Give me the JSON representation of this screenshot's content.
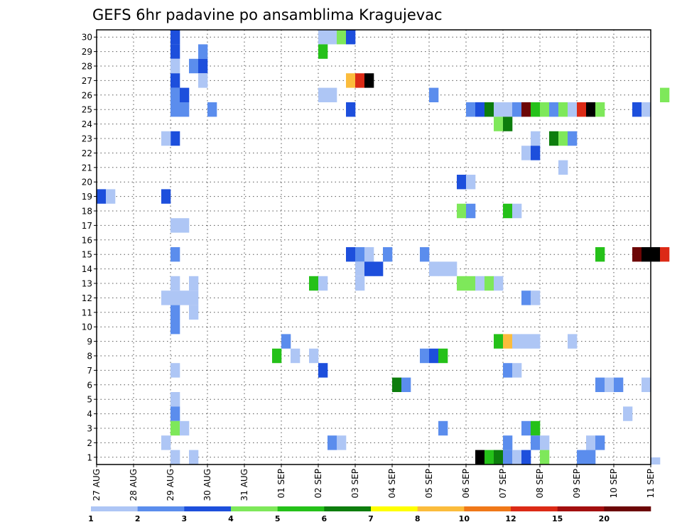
{
  "chart_data": {
    "type": "heatmap",
    "title": "GEFS 6hr padavine po ansamblima Kragujevac",
    "xlabel": "",
    "ylabel": "",
    "x_tick_labels": [
      "27 AUG",
      "28 AUG",
      "29 AUG",
      "30 AUG",
      "31 AUG",
      "01 SEP",
      "02 SEP",
      "03 SEP",
      "04 SEP",
      "05 SEP",
      "06 SEP",
      "07 SEP",
      "08 SEP",
      "09 SEP",
      "10 SEP",
      "11 SEP"
    ],
    "y_tick_labels": [
      "1",
      "2",
      "3",
      "4",
      "5",
      "6",
      "7",
      "8",
      "9",
      "10",
      "11",
      "12",
      "13",
      "14",
      "15",
      "16",
      "17",
      "18",
      "19",
      "20",
      "21",
      "22",
      "23",
      "24",
      "25",
      "26",
      "27",
      "28",
      "29",
      "30"
    ],
    "ylim": [
      1,
      30
    ],
    "time_steps_per_day": 4,
    "grid": true,
    "colorbar": {
      "boundaries": [
        "1",
        "2",
        "3",
        "4",
        "5",
        "6",
        "7",
        "8",
        "10",
        "12",
        "15",
        "20"
      ],
      "colors": [
        "#aec6f5",
        "#5b8ded",
        "#1d4fdc",
        "#7ee85a",
        "#25c119",
        "#0d7d0d",
        "#ffff00",
        "#fbbc3c",
        "#f07818",
        "#dc2a16",
        "#a30f0f",
        "#6c0606"
      ]
    },
    "cells": [
      [
        "29 AUG 00Z",
        30,
        3
      ],
      [
        "29 AUG 00Z",
        29,
        3
      ],
      [
        "29 AUG 00Z",
        28,
        1
      ],
      [
        "29 AUG 00Z",
        27,
        3
      ],
      [
        "29 AUG 00Z",
        26,
        2
      ],
      [
        "29 AUG 00Z",
        25,
        2
      ],
      [
        "29 AUG 00Z",
        23,
        3
      ],
      [
        "29 AUG 00Z",
        17,
        1
      ],
      [
        "29 AUG 00Z",
        15,
        2
      ],
      [
        "29 AUG 00Z",
        13,
        1
      ],
      [
        "29 AUG 00Z",
        12,
        1
      ],
      [
        "29 AUG 00Z",
        11,
        2
      ],
      [
        "29 AUG 00Z",
        10,
        2
      ],
      [
        "29 AUG 00Z",
        7,
        1
      ],
      [
        "29 AUG 00Z",
        5,
        1
      ],
      [
        "29 AUG 00Z",
        4,
        2
      ],
      [
        "29 AUG 00Z",
        3,
        4
      ],
      [
        "29 AUG 00Z",
        1,
        1
      ],
      [
        "28 AUG 18Z",
        23,
        1
      ],
      [
        "28 AUG 18Z",
        19,
        3
      ],
      [
        "28 AUG 18Z",
        12,
        1
      ],
      [
        "28 AUG 18Z",
        2,
        1
      ],
      [
        "29 AUG 06Z",
        26,
        3
      ],
      [
        "29 AUG 06Z",
        25,
        2
      ],
      [
        "29 AUG 06Z",
        17,
        1
      ],
      [
        "29 AUG 06Z",
        12,
        1
      ],
      [
        "29 AUG 06Z",
        3,
        1
      ],
      [
        "29 AUG 12Z",
        28,
        2
      ],
      [
        "29 AUG 12Z",
        13,
        1
      ],
      [
        "29 AUG 12Z",
        12,
        1
      ],
      [
        "29 AUG 12Z",
        11,
        1
      ],
      [
        "29 AUG 12Z",
        1,
        1
      ],
      [
        "29 AUG 18Z",
        29,
        2
      ],
      [
        "29 AUG 18Z",
        28,
        3
      ],
      [
        "29 AUG 18Z",
        27,
        1
      ],
      [
        "30 AUG 00Z",
        25,
        2
      ],
      [
        "27 AUG 00Z",
        19,
        3
      ],
      [
        "27 AUG 06Z",
        19,
        1
      ],
      [
        "01 SEP 00Z",
        9,
        2
      ],
      [
        "31 AUG 18Z",
        8,
        5
      ],
      [
        "01 SEP 06Z",
        8,
        1
      ],
      [
        "01 SEP 18Z",
        8,
        1
      ],
      [
        "02 SEP 00Z",
        30,
        1
      ],
      [
        "02 SEP 06Z",
        30,
        1
      ],
      [
        "02 SEP 12Z",
        30,
        4
      ],
      [
        "02 SEP 18Z",
        30,
        3
      ],
      [
        "02 SEP 00Z",
        29,
        5
      ],
      [
        "02 SEP 18Z",
        27,
        8
      ],
      [
        "03 SEP 00Z",
        27,
        10
      ],
      [
        "03 SEP 06Z",
        27,
        15
      ],
      [
        "02 SEP 00Z",
        26,
        1
      ],
      [
        "02 SEP 06Z",
        26,
        1
      ],
      [
        "02 SEP 18Z",
        25,
        3
      ],
      [
        "02 SEP 18Z",
        15,
        3
      ],
      [
        "03 SEP 00Z",
        15,
        2
      ],
      [
        "03 SEP 06Z",
        15,
        1
      ],
      [
        "03 SEP 18Z",
        15,
        2
      ],
      [
        "03 SEP 00Z",
        14,
        1
      ],
      [
        "03 SEP 06Z",
        14,
        3
      ],
      [
        "03 SEP 12Z",
        14,
        3
      ],
      [
        "01 SEP 18Z",
        13,
        5
      ],
      [
        "02 SEP 00Z",
        13,
        1
      ],
      [
        "03 SEP 00Z",
        13,
        1
      ],
      [
        "02 SEP 06Z",
        2,
        2
      ],
      [
        "02 SEP 12Z",
        2,
        1
      ],
      [
        "02 SEP 00Z",
        7,
        3
      ],
      [
        "04 SEP 00Z",
        6,
        6
      ],
      [
        "04 SEP 06Z",
        6,
        2
      ],
      [
        "04 SEP 18Z",
        15,
        2
      ],
      [
        "05 SEP 00Z",
        14,
        1
      ],
      [
        "05 SEP 06Z",
        14,
        1
      ],
      [
        "05 SEP 12Z",
        14,
        1
      ],
      [
        "04 SEP 18Z",
        8,
        2
      ],
      [
        "05 SEP 00Z",
        8,
        3
      ],
      [
        "05 SEP 06Z",
        8,
        5
      ],
      [
        "05 SEP 00Z",
        26,
        2
      ],
      [
        "05 SEP 06Z",
        3,
        2
      ],
      [
        "06 SEP 00Z",
        25,
        2
      ],
      [
        "06 SEP 06Z",
        25,
        3
      ],
      [
        "06 SEP 12Z",
        25,
        6
      ],
      [
        "06 SEP 18Z",
        25,
        1
      ],
      [
        "07 SEP 00Z",
        25,
        1
      ],
      [
        "07 SEP 06Z",
        25,
        2
      ],
      [
        "07 SEP 12Z",
        25,
        12
      ],
      [
        "07 SEP 18Z",
        25,
        5
      ],
      [
        "08 SEP 00Z",
        25,
        4
      ],
      [
        "08 SEP 06Z",
        25,
        2
      ],
      [
        "08 SEP 12Z",
        25,
        4
      ],
      [
        "08 SEP 18Z",
        25,
        1
      ],
      [
        "09 SEP 00Z",
        25,
        10
      ],
      [
        "09 SEP 06Z",
        25,
        15
      ],
      [
        "09 SEP 12Z",
        25,
        4
      ],
      [
        "10 SEP 12Z",
        25,
        3
      ],
      [
        "10 SEP 18Z",
        25,
        1
      ],
      [
        "06 SEP 18Z",
        24,
        4
      ],
      [
        "07 SEP 00Z",
        24,
        6
      ],
      [
        "07 SEP 18Z",
        23,
        1
      ],
      [
        "08 SEP 06Z",
        23,
        6
      ],
      [
        "08 SEP 12Z",
        23,
        4
      ],
      [
        "08 SEP 18Z",
        23,
        2
      ],
      [
        "07 SEP 12Z",
        22,
        1
      ],
      [
        "07 SEP 18Z",
        22,
        3
      ],
      [
        "08 SEP 12Z",
        21,
        1
      ],
      [
        "05 SEP 18Z",
        20,
        3
      ],
      [
        "06 SEP 00Z",
        20,
        1
      ],
      [
        "05 SEP 18Z",
        18,
        4
      ],
      [
        "06 SEP 00Z",
        18,
        2
      ],
      [
        "07 SEP 00Z",
        18,
        5
      ],
      [
        "07 SEP 06Z",
        18,
        1
      ],
      [
        "09 SEP 12Z",
        15,
        5
      ],
      [
        "10 SEP 12Z",
        15,
        12
      ],
      [
        "10 SEP 18Z",
        15,
        20
      ],
      [
        "11 SEP 00Z",
        15,
        20
      ],
      [
        "11 SEP 06Z",
        15,
        10
      ],
      [
        "05 SEP 18Z",
        13,
        4
      ],
      [
        "06 SEP 00Z",
        13,
        4
      ],
      [
        "06 SEP 06Z",
        13,
        1
      ],
      [
        "06 SEP 12Z",
        13,
        4
      ],
      [
        "06 SEP 18Z",
        13,
        1
      ],
      [
        "07 SEP 12Z",
        12,
        2
      ],
      [
        "07 SEP 18Z",
        12,
        1
      ],
      [
        "06 SEP 18Z",
        9,
        5
      ],
      [
        "07 SEP 00Z",
        9,
        8
      ],
      [
        "07 SEP 06Z",
        9,
        1
      ],
      [
        "07 SEP 12Z",
        9,
        1
      ],
      [
        "07 SEP 18Z",
        9,
        1
      ],
      [
        "08 SEP 18Z",
        9,
        1
      ],
      [
        "07 SEP 00Z",
        7,
        2
      ],
      [
        "07 SEP 06Z",
        7,
        1
      ],
      [
        "09 SEP 12Z",
        6,
        2
      ],
      [
        "09 SEP 18Z",
        6,
        1
      ],
      [
        "10 SEP 00Z",
        6,
        2
      ],
      [
        "10 SEP 18Z",
        6,
        1
      ],
      [
        "10 SEP 06Z",
        4,
        1
      ],
      [
        "07 SEP 12Z",
        3,
        2
      ],
      [
        "07 SEP 18Z",
        3,
        5
      ],
      [
        "07 SEP 00Z",
        2,
        2
      ],
      [
        "07 SEP 18Z",
        2,
        2
      ],
      [
        "08 SEP 00Z",
        2,
        1
      ],
      [
        "09 SEP 06Z",
        2,
        1
      ],
      [
        "09 SEP 12Z",
        2,
        2
      ],
      [
        "06 SEP 06Z",
        1,
        15
      ],
      [
        "06 SEP 12Z",
        1,
        5
      ],
      [
        "06 SEP 18Z",
        1,
        6
      ],
      [
        "07 SEP 00Z",
        1,
        2
      ],
      [
        "07 SEP 06Z",
        1,
        1
      ],
      [
        "07 SEP 12Z",
        1,
        3
      ],
      [
        "08 SEP 00Z",
        1,
        4
      ],
      [
        "09 SEP 00Z",
        1,
        2
      ],
      [
        "09 SEP 06Z",
        1,
        2
      ],
      [
        "11 SEP 00Z",
        0,
        1
      ],
      [
        "11 SEP 06Z",
        26,
        4
      ]
    ]
  }
}
